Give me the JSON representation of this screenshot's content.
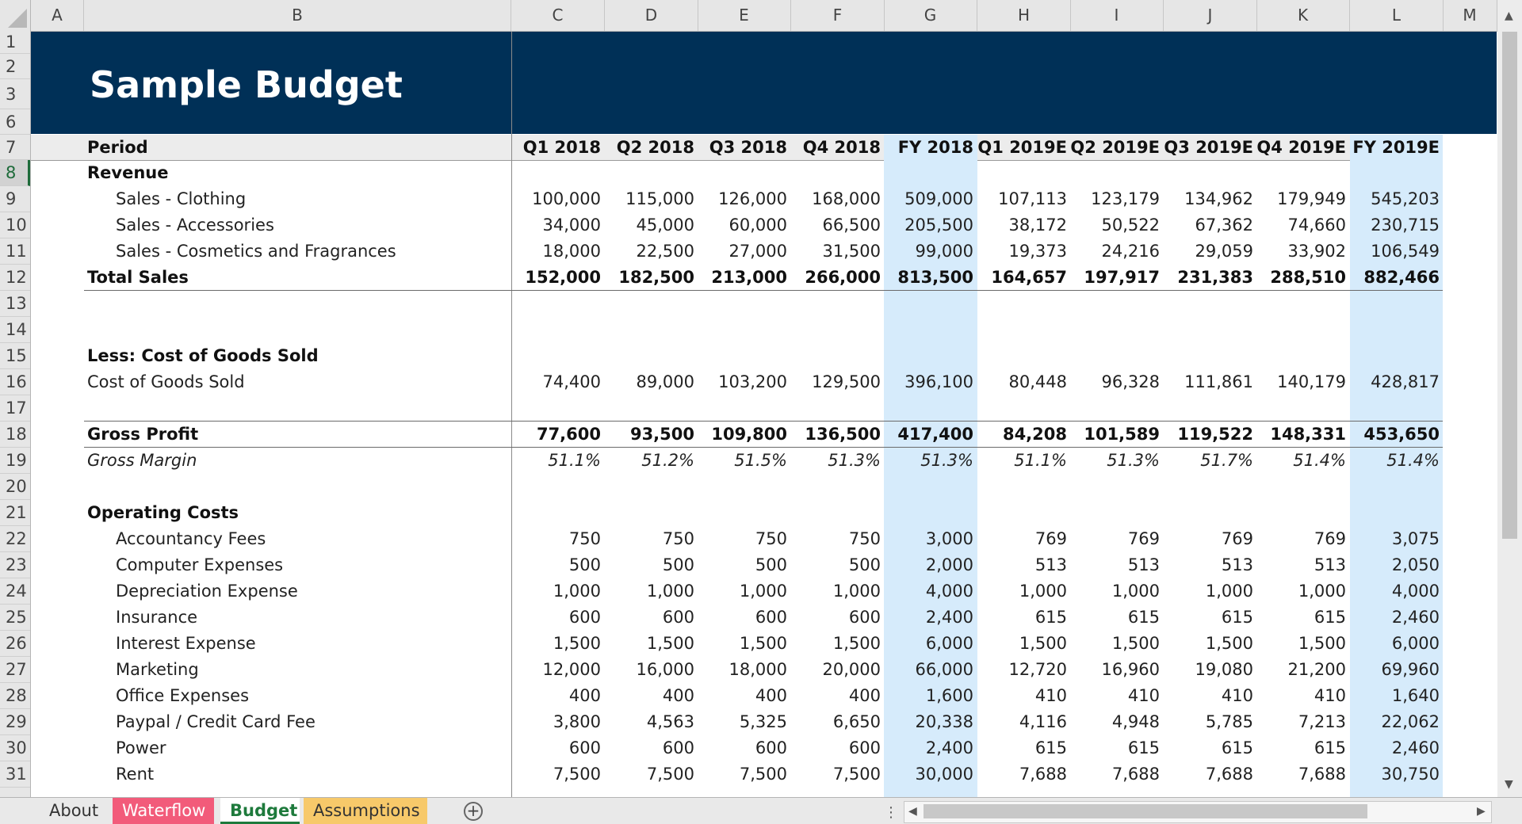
{
  "title": "Sample Budget",
  "columns": [
    "A",
    "B",
    "C",
    "D",
    "E",
    "F",
    "G",
    "H",
    "I",
    "J",
    "K",
    "L",
    "M"
  ],
  "rows": [
    "1",
    "2",
    "3",
    "6",
    "7",
    "8",
    "9",
    "10",
    "11",
    "12",
    "13",
    "14",
    "15",
    "16",
    "17",
    "18",
    "19",
    "20",
    "21",
    "22",
    "23",
    "24",
    "25",
    "26",
    "27",
    "28",
    "29",
    "30",
    "31"
  ],
  "period_label": "Period",
  "periods": [
    "Q1 2018",
    "Q2 2018",
    "Q3 2018",
    "Q4 2018",
    "FY 2018",
    "Q1 2019E",
    "Q2 2019E",
    "Q3 2019E",
    "Q4 2019E",
    "FY 2019E"
  ],
  "labels": {
    "revenue": "Revenue",
    "sales_clothing": "Sales - Clothing",
    "sales_accessories": "Sales - Accessories",
    "sales_cosmetics": "Sales - Cosmetics and Fragrances",
    "total_sales": "Total Sales",
    "less_cogs": "Less: Cost of Goods Sold",
    "cogs": "Cost of Goods Sold",
    "gross_profit": "Gross Profit",
    "gross_margin": "Gross Margin",
    "operating_costs": "Operating Costs",
    "accountancy": "Accountancy Fees",
    "computer": "Computer Expenses",
    "depreciation": "Depreciation Expense",
    "insurance": "Insurance",
    "interest": "Interest Expense",
    "marketing": "Marketing",
    "office": "Office Expenses",
    "paypal": "Paypal / Credit Card Fee",
    "power": "Power",
    "rent": "Rent"
  },
  "values": {
    "sales_clothing": [
      "100,000",
      "115,000",
      "126,000",
      "168,000",
      "509,000",
      "107,113",
      "123,179",
      "134,962",
      "179,949",
      "545,203"
    ],
    "sales_accessories": [
      "34,000",
      "45,000",
      "60,000",
      "66,500",
      "205,500",
      "38,172",
      "50,522",
      "67,362",
      "74,660",
      "230,715"
    ],
    "sales_cosmetics": [
      "18,000",
      "22,500",
      "27,000",
      "31,500",
      "99,000",
      "19,373",
      "24,216",
      "29,059",
      "33,902",
      "106,549"
    ],
    "total_sales": [
      "152,000",
      "182,500",
      "213,000",
      "266,000",
      "813,500",
      "164,657",
      "197,917",
      "231,383",
      "288,510",
      "882,466"
    ],
    "cogs": [
      "74,400",
      "89,000",
      "103,200",
      "129,500",
      "396,100",
      "80,448",
      "96,328",
      "111,861",
      "140,179",
      "428,817"
    ],
    "gross_profit": [
      "77,600",
      "93,500",
      "109,800",
      "136,500",
      "417,400",
      "84,208",
      "101,589",
      "119,522",
      "148,331",
      "453,650"
    ],
    "gross_margin": [
      "51.1%",
      "51.2%",
      "51.5%",
      "51.3%",
      "51.3%",
      "51.1%",
      "51.3%",
      "51.7%",
      "51.4%",
      "51.4%"
    ],
    "accountancy": [
      "750",
      "750",
      "750",
      "750",
      "3,000",
      "769",
      "769",
      "769",
      "769",
      "3,075"
    ],
    "computer": [
      "500",
      "500",
      "500",
      "500",
      "2,000",
      "513",
      "513",
      "513",
      "513",
      "2,050"
    ],
    "depreciation": [
      "1,000",
      "1,000",
      "1,000",
      "1,000",
      "4,000",
      "1,000",
      "1,000",
      "1,000",
      "1,000",
      "4,000"
    ],
    "insurance": [
      "600",
      "600",
      "600",
      "600",
      "2,400",
      "615",
      "615",
      "615",
      "615",
      "2,460"
    ],
    "interest": [
      "1,500",
      "1,500",
      "1,500",
      "1,500",
      "6,000",
      "1,500",
      "1,500",
      "1,500",
      "1,500",
      "6,000"
    ],
    "marketing": [
      "12,000",
      "16,000",
      "18,000",
      "20,000",
      "66,000",
      "12,720",
      "16,960",
      "19,080",
      "21,200",
      "69,960"
    ],
    "office": [
      "400",
      "400",
      "400",
      "400",
      "1,600",
      "410",
      "410",
      "410",
      "410",
      "1,640"
    ],
    "paypal": [
      "3,800",
      "4,563",
      "5,325",
      "6,650",
      "20,338",
      "4,116",
      "4,948",
      "5,785",
      "7,213",
      "22,062"
    ],
    "power": [
      "600",
      "600",
      "600",
      "600",
      "2,400",
      "615",
      "615",
      "615",
      "615",
      "2,460"
    ],
    "rent": [
      "7,500",
      "7,500",
      "7,500",
      "7,500",
      "30,000",
      "7,688",
      "7,688",
      "7,688",
      "7,688",
      "30,750"
    ]
  },
  "tabs": [
    "About",
    "Waterflow",
    "Budget",
    "Assumptions"
  ],
  "colors": {
    "banner": "#003057",
    "fy_highlight": "#d6ebfb",
    "active_tab": "#1e7a3c",
    "waterflow_tab": "#f25b7a",
    "assumptions_tab": "#f7c96a"
  }
}
